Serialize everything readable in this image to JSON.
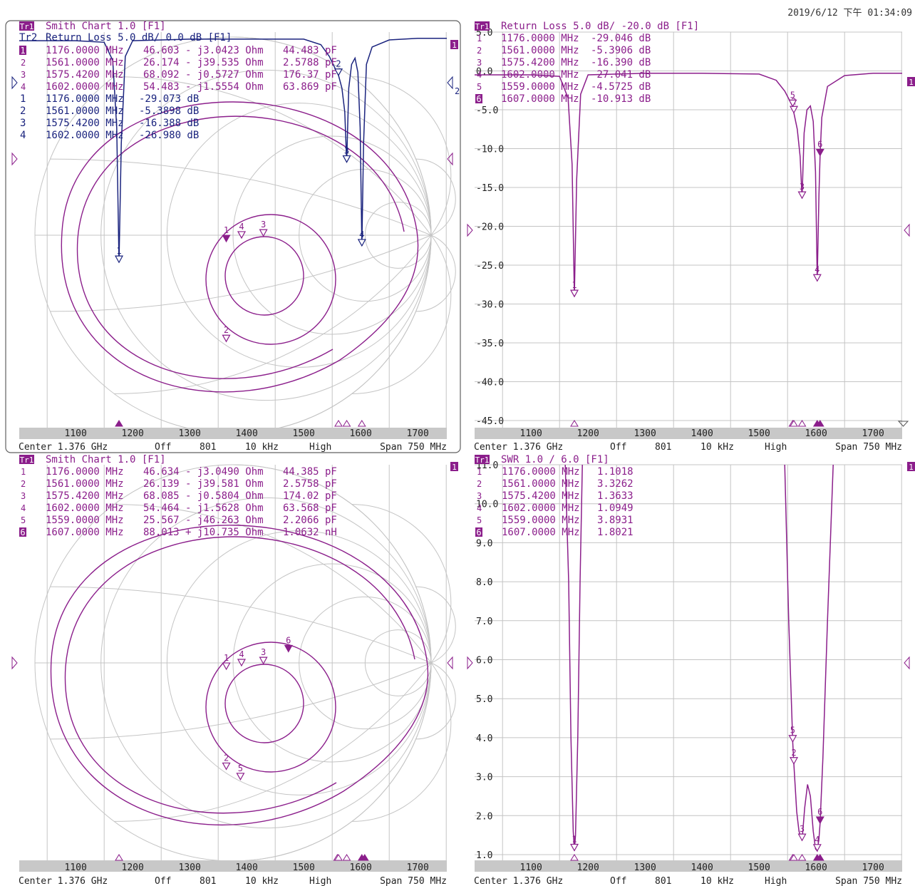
{
  "timestamp": "2019/6/12 下午 01:34:09",
  "colors": {
    "magenta": "#8b1e8b",
    "blue": "#1a237e",
    "grid": "#c4c4c4",
    "axisbar": "#c8c8c8",
    "text": "#222222"
  },
  "footer": {
    "center": "Center 1.376 GHz",
    "ifbw_off": "Off",
    "points": "801",
    "ifbw": "10 kHz",
    "power": "High",
    "span": "Span 750 MHz"
  },
  "freq_ticks": [
    "1100",
    "1200",
    "1300",
    "1400",
    "1500",
    "1600",
    "1700"
  ],
  "panels": [
    {
      "id": "tl",
      "tr1_label": "Tr1",
      "tr1_title": "Smith Chart 1.0   [F1]",
      "tr2_label": "Tr2",
      "tr2_title": "Return Loss 5.0 dB/ 0.0 dB [F1]",
      "markers_smith": [
        {
          "n": "1",
          "freq": "1176.0000 MHz",
          "val": "46.603 - j3.0423 Ohm",
          "extra": "44.483 pF"
        },
        {
          "n": "2",
          "freq": "1561.0000 MHz",
          "val": "26.174 - j39.535 Ohm",
          "extra": "2.5788 pF"
        },
        {
          "n": "3",
          "freq": "1575.4200 MHz",
          "val": "68.092 - j0.5727 Ohm",
          "extra": "176.37 pF"
        },
        {
          "n": "4",
          "freq": "1602.0000 MHz",
          "val": "54.483 - j1.5554 Ohm",
          "extra": "63.869 pF"
        }
      ],
      "markers_rl": [
        {
          "n": "1",
          "freq": "1176.0000 MHz",
          "val": "-29.073 dB"
        },
        {
          "n": "2",
          "freq": "1561.0000 MHz",
          "val": "-5.3898 dB"
        },
        {
          "n": "3",
          "freq": "1575.4200 MHz",
          "val": "-16.388 dB"
        },
        {
          "n": "4",
          "freq": "1602.0000 MHz",
          "val": "-26.980 dB"
        }
      ]
    },
    {
      "id": "tr",
      "tr1_label": "Tr1",
      "tr1_title": "Return Loss 5.0 dB/ -20.0 dB [F1]",
      "y_ticks": [
        "5.0",
        "0.0",
        "-5.0",
        "-10.0",
        "-15.0",
        "-20.0",
        "-25.0",
        "-30.0",
        "-35.0",
        "-40.0",
        "-45.0"
      ],
      "markers": [
        {
          "n": "1",
          "freq": "1176.0000 MHz",
          "val": "-29.046 dB"
        },
        {
          "n": "2",
          "freq": "1561.0000 MHz",
          "val": "-5.3906 dB"
        },
        {
          "n": "3",
          "freq": "1575.4200 MHz",
          "val": "-16.390 dB"
        },
        {
          "n": "4",
          "freq": "1602.0000 MHz",
          "val": "-27.041 dB"
        },
        {
          "n": "5",
          "freq": "1559.0000 MHz",
          "val": "-4.5725 dB"
        },
        {
          "n": "6",
          "freq": "1607.0000 MHz",
          "val": "-10.913 dB"
        }
      ]
    },
    {
      "id": "bl",
      "tr1_label": "Tr1",
      "tr1_title": "Smith Chart 1.0   [F1]",
      "markers": [
        {
          "n": "1",
          "freq": "1176.0000 MHz",
          "val": "46.634 - j3.0490 Ohm",
          "extra": "44.385 pF"
        },
        {
          "n": "2",
          "freq": "1561.0000 MHz",
          "val": "26.139 - j39.581 Ohm",
          "extra": "2.5758 pF"
        },
        {
          "n": "3",
          "freq": "1575.4200 MHz",
          "val": "68.085 - j0.5804 Ohm",
          "extra": "174.02 pF"
        },
        {
          "n": "4",
          "freq": "1602.0000 MHz",
          "val": "54.464 - j1.5628 Ohm",
          "extra": "63.568 pF"
        },
        {
          "n": "5",
          "freq": "1559.0000 MHz",
          "val": "25.567 - j46.263 Ohm",
          "extra": "2.2066 pF"
        },
        {
          "n": "6",
          "freq": "1607.0000 MHz",
          "val": "88.013 + j10.735 Ohm",
          "extra": "1.0632 nH"
        }
      ]
    },
    {
      "id": "br",
      "tr1_label": "Tr1",
      "tr1_title": "SWR 1.0 / 6.0   [F1]",
      "y_ticks": [
        "11.0",
        "10.0",
        "9.0",
        "8.0",
        "7.0",
        "6.0",
        "5.0",
        "4.0",
        "3.0",
        "2.0",
        "1.0"
      ],
      "markers": [
        {
          "n": "1",
          "freq": "1176.0000 MHz",
          "val": "1.1018"
        },
        {
          "n": "2",
          "freq": "1561.0000 MHz",
          "val": "3.3262"
        },
        {
          "n": "3",
          "freq": "1575.4200 MHz",
          "val": "1.3633"
        },
        {
          "n": "4",
          "freq": "1602.0000 MHz",
          "val": "1.0949"
        },
        {
          "n": "5",
          "freq": "1559.0000 MHz",
          "val": "3.8931"
        },
        {
          "n": "6",
          "freq": "1607.0000 MHz",
          "val": "1.8021"
        }
      ]
    }
  ],
  "chart_data": [
    {
      "type": "scatter",
      "title": "Smith Chart 1.0",
      "xlabel": "",
      "ylabel": "",
      "series": [
        {
          "name": "Tr1",
          "x": [
            1176,
            1561,
            1575.42,
            1602
          ],
          "r_ohm": [
            46.603,
            26.174,
            68.092,
            54.483
          ],
          "x_ohm": [
            -3.0423,
            -39.535,
            -0.5727,
            -1.5554
          ]
        }
      ]
    },
    {
      "type": "line",
      "title": "Return Loss 5.0 dB/ 0.0 dB",
      "xlabel": "",
      "ylabel": "",
      "xlim": [
        1001,
        1751
      ],
      "ylim": [
        -50,
        0
      ],
      "series": [
        {
          "name": "Tr2",
          "x": [
            1001,
            1100,
            1150,
            1165,
            1172,
            1176,
            1180,
            1187,
            1200,
            1300,
            1400,
            1500,
            1530,
            1545,
            1555,
            1561,
            1567,
            1572,
            1575.42,
            1579,
            1584,
            1590,
            1595,
            1599,
            1602,
            1605,
            1610,
            1620,
            1650,
            1700,
            1751
          ],
          "y": [
            -1.0,
            -1.0,
            -1.2,
            -3.5,
            -12.0,
            -29.073,
            -14.0,
            -3.0,
            -1.0,
            -0.8,
            -0.8,
            -0.8,
            -1.5,
            -3.0,
            -4.5,
            -5.3898,
            -7.0,
            -10.0,
            -16.388,
            -7.0,
            -4.0,
            -3.2,
            -5.0,
            -12.0,
            -26.98,
            -14.0,
            -4.0,
            -1.8,
            -0.9,
            -0.7,
            -0.7
          ]
        }
      ]
    },
    {
      "type": "line",
      "title": "Return Loss 5.0 dB/ -20.0 dB",
      "xlabel": "",
      "ylabel": "",
      "xlim": [
        1001,
        1751
      ],
      "ylim": [
        -45,
        5
      ],
      "series": [
        {
          "name": "Tr1",
          "x": [
            1001,
            1100,
            1150,
            1165,
            1172,
            1176,
            1180,
            1187,
            1200,
            1300,
            1400,
            1500,
            1530,
            1545,
            1555,
            1559,
            1561,
            1567,
            1572,
            1575.42,
            1579,
            1584,
            1590,
            1595,
            1599,
            1602,
            1605,
            1607,
            1610,
            1620,
            1650,
            1700,
            1751
          ],
          "y": [
            -0.5,
            -0.5,
            -0.7,
            -3.5,
            -12.0,
            -29.046,
            -14.0,
            -3.0,
            -0.5,
            -0.3,
            -0.3,
            -0.4,
            -1.2,
            -2.6,
            -4.0,
            -4.5725,
            -5.3906,
            -7.5,
            -11.0,
            -16.39,
            -8.0,
            -5.0,
            -4.5,
            -6.5,
            -13.0,
            -27.041,
            -16.0,
            -10.913,
            -6.0,
            -2.0,
            -0.6,
            -0.3,
            -0.3
          ]
        }
      ]
    },
    {
      "type": "scatter",
      "title": "Smith Chart 1.0",
      "xlabel": "",
      "ylabel": "",
      "series": [
        {
          "name": "Tr1",
          "x": [
            1176,
            1561,
            1575.42,
            1602,
            1559,
            1607
          ],
          "r_ohm": [
            46.634,
            26.139,
            68.085,
            54.464,
            25.567,
            88.013
          ],
          "x_ohm": [
            -3.049,
            -39.581,
            -0.5804,
            -1.5628,
            -46.263,
            10.735
          ]
        }
      ]
    },
    {
      "type": "line",
      "title": "SWR 1.0 / 6.0",
      "xlabel": "",
      "ylabel": "",
      "xlim": [
        1001,
        1751
      ],
      "ylim": [
        1,
        11
      ],
      "series": [
        {
          "name": "Tr1",
          "x": [
            1160,
            1166,
            1170,
            1174,
            1176,
            1178,
            1182,
            1186,
            1190,
            1545,
            1552,
            1559,
            1561,
            1566,
            1570,
            1575.42,
            1580,
            1585,
            1590,
            1595,
            1599,
            1602,
            1605,
            1607,
            1612,
            1620,
            1630
          ],
          "y": [
            13.0,
            8.0,
            4.0,
            1.6,
            1.1018,
            1.5,
            4.0,
            8.0,
            13.0,
            12.0,
            7.0,
            3.8931,
            3.3262,
            2.1,
            1.6,
            1.3633,
            2.2,
            2.8,
            2.5,
            1.6,
            1.15,
            1.0949,
            1.4,
            1.8021,
            3.5,
            7.0,
            12.5
          ]
        }
      ]
    }
  ]
}
